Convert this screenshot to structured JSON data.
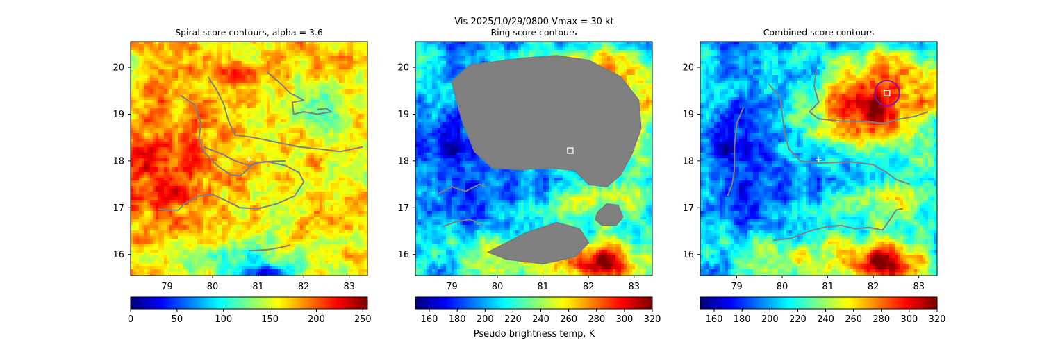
{
  "figure": {
    "suptitle": "Vis  2025/10/29/0800    Vmax = 30 kt",
    "colorbar_label": "Pseudo brightness temp, K"
  },
  "chart_data": [
    {
      "type": "heatmap",
      "title": "Spiral score contours, alpha =  3.6",
      "xlim": [
        78.2,
        83.4
      ],
      "ylim": [
        15.55,
        20.55
      ],
      "xticks": [
        79,
        80,
        81,
        82,
        83
      ],
      "yticks": [
        16,
        17,
        18,
        19,
        20
      ],
      "colormap": "jet",
      "field_style": "spiral",
      "colorbar": {
        "range": [
          0,
          255
        ],
        "ticks": [
          0,
          50,
          100,
          150,
          200,
          250
        ]
      },
      "contours": [
        [
          [
            79.3,
            19.4
          ],
          [
            79.6,
            19.2
          ],
          [
            79.75,
            18.8
          ],
          [
            79.7,
            18.5
          ],
          [
            79.8,
            18.2
          ],
          [
            80.1,
            17.9
          ],
          [
            80.4,
            17.7
          ],
          [
            80.6,
            17.68
          ],
          [
            80.75,
            17.8
          ],
          [
            80.9,
            17.95
          ],
          [
            81.2,
            17.98
          ],
          [
            81.6,
            17.9
          ],
          [
            81.9,
            17.75
          ],
          [
            82.0,
            17.55
          ],
          [
            81.8,
            17.25
          ],
          [
            81.4,
            17.08
          ],
          [
            81.0,
            16.98
          ],
          [
            80.6,
            17.0
          ],
          [
            80.3,
            17.15
          ],
          [
            80.0,
            17.28
          ],
          [
            79.7,
            17.25
          ],
          [
            79.4,
            17.1
          ],
          [
            79.25,
            16.95
          ],
          [
            79.0,
            16.95
          ],
          [
            78.8,
            16.97
          ]
        ],
        [
          [
            79.9,
            19.8
          ],
          [
            80.1,
            19.5
          ],
          [
            80.25,
            19.2
          ],
          [
            80.35,
            18.85
          ],
          [
            80.5,
            18.55
          ],
          [
            80.9,
            18.5
          ],
          [
            81.4,
            18.4
          ],
          [
            81.9,
            18.3
          ],
          [
            82.4,
            18.25
          ],
          [
            82.8,
            18.2
          ],
          [
            83.3,
            18.3
          ]
        ],
        [
          [
            81.2,
            19.9
          ],
          [
            81.5,
            19.65
          ],
          [
            81.7,
            19.45
          ],
          [
            82.0,
            19.3
          ],
          [
            81.75,
            19.25
          ],
          [
            81.78,
            19.0
          ],
          [
            82.0,
            19.05
          ],
          [
            82.3,
            19.0
          ],
          [
            82.6,
            19.05
          ],
          [
            82.5,
            19.12
          ],
          [
            82.3,
            19.1
          ]
        ],
        [
          [
            79.8,
            18.3
          ],
          [
            80.2,
            18.15
          ],
          [
            80.5,
            18.0
          ],
          [
            80.8,
            17.9
          ],
          [
            81.1,
            17.98
          ],
          [
            81.6,
            18.0
          ]
        ],
        [
          [
            80.8,
            16.08
          ],
          [
            81.2,
            16.1
          ],
          [
            81.5,
            16.15
          ],
          [
            81.7,
            16.2
          ]
        ]
      ],
      "center_markers": [
        {
          "x": 80.8,
          "y": 18.03,
          "shape": "plus"
        }
      ]
    },
    {
      "type": "heatmap",
      "title": "Ring score contours",
      "xlim": [
        78.2,
        83.4
      ],
      "ylim": [
        15.55,
        20.55
      ],
      "xticks": [
        79,
        80,
        81,
        82,
        83
      ],
      "yticks": [
        16,
        17,
        18,
        19,
        20
      ],
      "colormap": "jet",
      "field_style": "tb",
      "colorbar": {
        "range": [
          150,
          320
        ],
        "ticks": [
          160,
          180,
          200,
          220,
          240,
          260,
          280,
          300,
          320
        ]
      },
      "filled_regions": [
        [
          [
            80.6,
            20.2
          ],
          [
            81.3,
            20.25
          ],
          [
            82.0,
            20.15
          ],
          [
            82.7,
            19.8
          ],
          [
            83.1,
            19.3
          ],
          [
            83.15,
            18.7
          ],
          [
            82.95,
            18.15
          ],
          [
            82.7,
            17.7
          ],
          [
            82.4,
            17.45
          ],
          [
            82.0,
            17.5
          ],
          [
            81.7,
            17.8
          ],
          [
            81.2,
            17.85
          ],
          [
            80.5,
            17.82
          ],
          [
            79.9,
            17.85
          ],
          [
            79.5,
            18.2
          ],
          [
            79.25,
            18.8
          ],
          [
            79.1,
            19.3
          ],
          [
            79.0,
            19.7
          ],
          [
            79.4,
            20.05
          ]
        ],
        [
          [
            80.0,
            16.15
          ],
          [
            80.6,
            16.45
          ],
          [
            81.3,
            16.68
          ],
          [
            81.8,
            16.55
          ],
          [
            82.0,
            16.25
          ],
          [
            81.7,
            15.95
          ],
          [
            81.0,
            15.8
          ],
          [
            80.2,
            15.9
          ],
          [
            79.8,
            16.05
          ]
        ],
        [
          [
            82.2,
            16.9
          ],
          [
            82.4,
            17.08
          ],
          [
            82.65,
            17.05
          ],
          [
            82.75,
            16.8
          ],
          [
            82.6,
            16.62
          ],
          [
            82.3,
            16.62
          ],
          [
            82.15,
            16.75
          ]
        ]
      ],
      "contours": [
        [
          [
            78.7,
            17.3
          ],
          [
            79.0,
            17.45
          ],
          [
            79.3,
            17.35
          ],
          [
            79.6,
            17.5
          ],
          [
            79.75,
            17.45
          ]
        ],
        [
          [
            78.8,
            16.6
          ],
          [
            79.1,
            16.7
          ],
          [
            79.4,
            16.75
          ],
          [
            79.7,
            16.62
          ]
        ]
      ],
      "center_markers": [
        {
          "x": 81.6,
          "y": 18.22,
          "shape": "square"
        }
      ]
    },
    {
      "type": "heatmap",
      "title": "Combined score contours",
      "xlim": [
        78.2,
        83.4
      ],
      "ylim": [
        15.55,
        20.55
      ],
      "xticks": [
        79,
        80,
        81,
        82,
        83
      ],
      "yticks": [
        16,
        17,
        18,
        19,
        20
      ],
      "colormap": "jet",
      "field_style": "tb",
      "colorbar": {
        "range": [
          150,
          320
        ],
        "ticks": [
          160,
          180,
          200,
          220,
          240,
          260,
          280,
          300,
          320
        ]
      },
      "contours": [
        [
          [
            79.15,
            19.15
          ],
          [
            79.0,
            18.8
          ],
          [
            78.95,
            18.3
          ],
          [
            78.95,
            17.8
          ],
          [
            78.9,
            17.5
          ],
          [
            78.8,
            17.25
          ]
        ],
        [
          [
            79.7,
            19.65
          ],
          [
            79.95,
            19.35
          ],
          [
            80.0,
            19.0
          ],
          [
            80.05,
            18.6
          ],
          [
            80.15,
            18.25
          ],
          [
            80.4,
            18.0
          ],
          [
            80.8,
            17.95
          ],
          [
            81.5,
            17.98
          ],
          [
            82.0,
            17.92
          ],
          [
            82.3,
            17.75
          ],
          [
            82.5,
            17.6
          ],
          [
            82.8,
            17.5
          ]
        ],
        [
          [
            80.75,
            19.95
          ],
          [
            80.7,
            19.6
          ],
          [
            80.8,
            19.25
          ],
          [
            80.6,
            19.05
          ],
          [
            80.8,
            18.9
          ],
          [
            81.3,
            18.85
          ],
          [
            81.8,
            18.85
          ],
          [
            82.2,
            18.8
          ],
          [
            82.6,
            18.9
          ],
          [
            82.9,
            18.95
          ],
          [
            83.2,
            19.05
          ]
        ],
        [
          [
            79.8,
            16.3
          ],
          [
            80.2,
            16.35
          ],
          [
            80.6,
            16.5
          ],
          [
            81.0,
            16.6
          ],
          [
            81.3,
            16.62
          ],
          [
            81.6,
            16.55
          ],
          [
            81.9,
            16.58
          ],
          [
            82.2,
            16.52
          ],
          [
            82.35,
            16.72
          ],
          [
            82.5,
            16.95
          ],
          [
            82.65,
            16.98
          ]
        ]
      ],
      "center_markers": [
        {
          "x": 80.8,
          "y": 18.03,
          "shape": "plus"
        },
        {
          "x": 82.3,
          "y": 19.45,
          "shape": "square"
        }
      ],
      "ring": {
        "x": 82.3,
        "y": 19.45,
        "radius_deg": 0.27,
        "color": "#9010a8"
      }
    }
  ]
}
